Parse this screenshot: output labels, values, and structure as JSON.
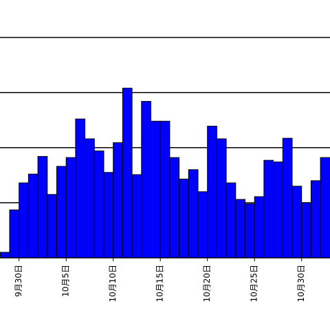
{
  "chart_data": {
    "type": "bar",
    "categories": [
      null,
      null,
      "9月30日",
      null,
      null,
      null,
      null,
      "10月5日",
      null,
      null,
      null,
      null,
      "10月10日",
      null,
      null,
      null,
      null,
      "10月15日",
      null,
      null,
      null,
      null,
      "10月20日",
      null,
      null,
      null,
      null,
      "10月25日",
      null,
      null,
      null,
      null,
      "10月30日",
      null,
      null
    ],
    "values": [
      0.1,
      0.87,
      1.36,
      1.52,
      1.84,
      1.15,
      1.66,
      1.82,
      2.52,
      2.16,
      1.94,
      1.55,
      2.09,
      3.08,
      1.51,
      2.84,
      2.48,
      2.48,
      1.82,
      1.43,
      1.6,
      1.2,
      2.39,
      2.16,
      1.36,
      1.06,
      0.98,
      1.11,
      1.77,
      1.74,
      2.17,
      1.3,
      1.0,
      1.4,
      1.82
    ],
    "color": "#0000ff",
    "ylim": [
      0,
      4.68
    ],
    "yticks": [
      1,
      2,
      3,
      4
    ],
    "grid": true
  }
}
